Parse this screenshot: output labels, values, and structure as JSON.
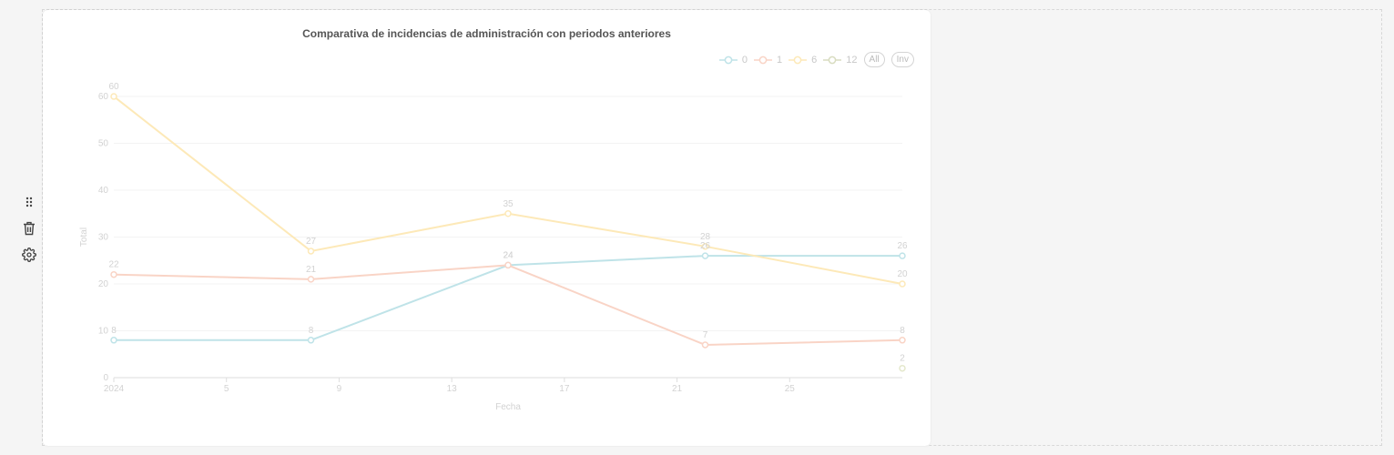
{
  "toolbar": {
    "drag_icon": "drag-handle-icon",
    "delete_icon": "trash-icon",
    "settings_icon": "gear-icon"
  },
  "legend": {
    "all_label": "All",
    "inv_label": "Inv"
  },
  "chart_data": {
    "type": "line",
    "title": "Comparativa de incidencias de administración con periodos anteriores",
    "xlabel": "Fecha",
    "ylabel": "Total",
    "x_ticks": [
      "2024",
      "5",
      "9",
      "13",
      "17",
      "21",
      "25"
    ],
    "y_ticks": [
      0,
      10,
      20,
      30,
      40,
      50,
      60
    ],
    "ylim": [
      0,
      60
    ],
    "grid": true,
    "legend_position": "top-right",
    "x": [
      1,
      8,
      15,
      22,
      29
    ],
    "series": [
      {
        "name": "0",
        "color": "#bfe3e8",
        "values": [
          8,
          8,
          24,
          26,
          26
        ]
      },
      {
        "name": "1",
        "color": "#f9d4c6",
        "values": [
          22,
          21,
          24,
          7,
          8
        ]
      },
      {
        "name": "6",
        "color": "#fde9b8",
        "values": [
          60,
          27,
          35,
          28,
          20
        ]
      },
      {
        "name": "12",
        "color": "#e4e8cc",
        "values": [
          null,
          null,
          null,
          null,
          2
        ]
      }
    ]
  }
}
